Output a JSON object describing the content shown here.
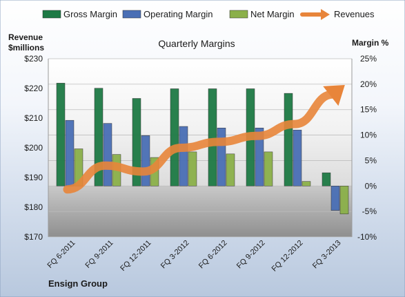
{
  "chart_data": {
    "type": "bar",
    "title": "Quarterly Margins",
    "company": "Ensign Group",
    "left_axis": {
      "label_line1": "Revenue",
      "label_line2": "$millions",
      "range": [
        170,
        230
      ],
      "ticks": [
        "$170",
        "$180",
        "$190",
        "$200",
        "$210",
        "$220",
        "$230"
      ],
      "tick_values": [
        170,
        180,
        190,
        200,
        210,
        220,
        230
      ]
    },
    "right_axis": {
      "label": "Margin %",
      "range": [
        -10,
        25
      ],
      "ticks": [
        "-10%",
        "-5%",
        "0%",
        "5%",
        "10%",
        "15%",
        "20%",
        "25%"
      ],
      "tick_values": [
        -10,
        -5,
        0,
        5,
        10,
        15,
        20,
        25
      ]
    },
    "categories": [
      "FQ 6-2011",
      "FQ 9-2011",
      "FQ 12-2011",
      "FQ 3-2012",
      "FQ 6-2012",
      "FQ 9-2012",
      "FQ 12-2012",
      "FQ 3-2013"
    ],
    "series": [
      {
        "name": "Gross Margin",
        "axis": "right",
        "color": "#1e7a45",
        "values": [
          20.2,
          19.2,
          17.2,
          19.1,
          19.1,
          19.1,
          18.2,
          2.6
        ]
      },
      {
        "name": "Operating Margin",
        "axis": "right",
        "color": "#4a6fb5",
        "values": [
          12.9,
          12.3,
          9.9,
          11.7,
          11.4,
          11.4,
          11.0,
          -4.8
        ]
      },
      {
        "name": "Net Margin",
        "axis": "right",
        "color": "#8bb04a",
        "values": [
          7.3,
          6.2,
          5.6,
          6.7,
          6.3,
          6.7,
          0.9,
          -5.5
        ]
      }
    ],
    "trend": {
      "name": "Revenues",
      "color": "#e8853a",
      "axis": "left",
      "values": [
        186,
        194,
        192,
        200,
        202,
        204,
        208,
        218
      ]
    },
    "grid": true,
    "legend_position": "top"
  }
}
